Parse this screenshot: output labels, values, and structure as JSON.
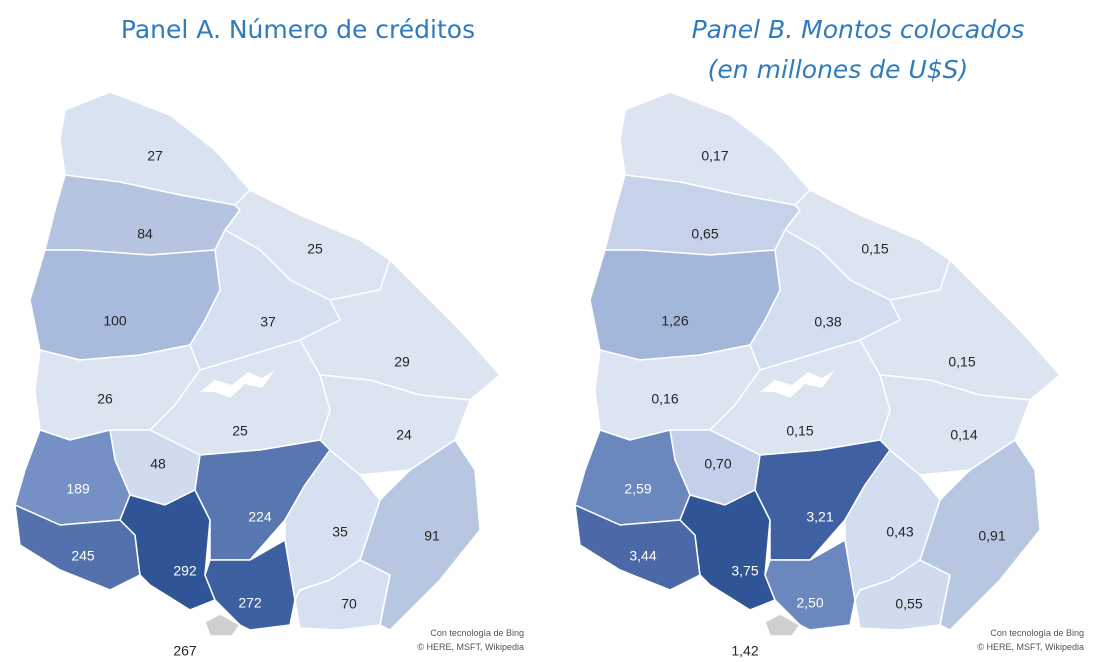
{
  "panels": [
    {
      "title": [
        "Panel A. Número de créditos"
      ],
      "regions": [
        {
          "label": "27",
          "color": "#d9e2f1"
        },
        {
          "label": "84",
          "color": "#b4c4e1"
        },
        {
          "label": "25",
          "color": "#dce4f2"
        },
        {
          "label": "37",
          "color": "#d6e0f0"
        },
        {
          "label": "100",
          "color": "#a8bbdc"
        },
        {
          "label": "26",
          "color": "#dce4f2"
        },
        {
          "label": "29",
          "color": "#dce4f2"
        },
        {
          "label": "25",
          "color": "#dce4f2"
        },
        {
          "label": "24",
          "color": "#dce4f2"
        },
        {
          "label": "48",
          "color": "#d0dbee"
        },
        {
          "label": "189",
          "color": "#7490c4"
        },
        {
          "label": "245",
          "color": "#5372ad"
        },
        {
          "label": "292",
          "color": "#2f5597"
        },
        {
          "label": "224",
          "color": "#5877b0"
        },
        {
          "label": "272",
          "color": "#3d60a0"
        },
        {
          "label": "267",
          "color": "#cfcfcf"
        },
        {
          "label": "35",
          "color": "#d6e0f0"
        },
        {
          "label": "70",
          "color": "#d6e0f0"
        },
        {
          "label": "91",
          "color": "#b7c7e2"
        }
      ],
      "attribution": [
        "Con tecnología de Bing",
        "© HERE, MSFT, Wikipedia"
      ]
    },
    {
      "title": [
        "Panel B. Montos colocados",
        "(en millones de U$S)"
      ],
      "regions": [
        {
          "label": "0,17",
          "color": "#dce4f2"
        },
        {
          "label": "0,65",
          "color": "#c5d2ea"
        },
        {
          "label": "0,15",
          "color": "#dce4f2"
        },
        {
          "label": "0,38",
          "color": "#d3def0"
        },
        {
          "label": "1,26",
          "color": "#a3b7da"
        },
        {
          "label": "0,16",
          "color": "#dce4f2"
        },
        {
          "label": "0,15",
          "color": "#dce4f2"
        },
        {
          "label": "0,15",
          "color": "#dce4f2"
        },
        {
          "label": "0,14",
          "color": "#dce4f2"
        },
        {
          "label": "0,70",
          "color": "#c3d0e9"
        },
        {
          "label": "2,59",
          "color": "#6a87be"
        },
        {
          "label": "3,44",
          "color": "#4a69a6"
        },
        {
          "label": "3,75",
          "color": "#2f5597"
        },
        {
          "label": "3,21",
          "color": "#3f61a1"
        },
        {
          "label": "2,50",
          "color": "#6a87be"
        },
        {
          "label": "1,42",
          "color": "#cfcfcf"
        },
        {
          "label": "0,43",
          "color": "#d2ddef"
        },
        {
          "label": "0,55",
          "color": "#d0dbee"
        },
        {
          "label": "0,91",
          "color": "#b7c7e2"
        }
      ],
      "attribution": [
        "Con tecnología de Bing",
        "© HERE, MSFT, Wikipedia"
      ]
    }
  ]
}
